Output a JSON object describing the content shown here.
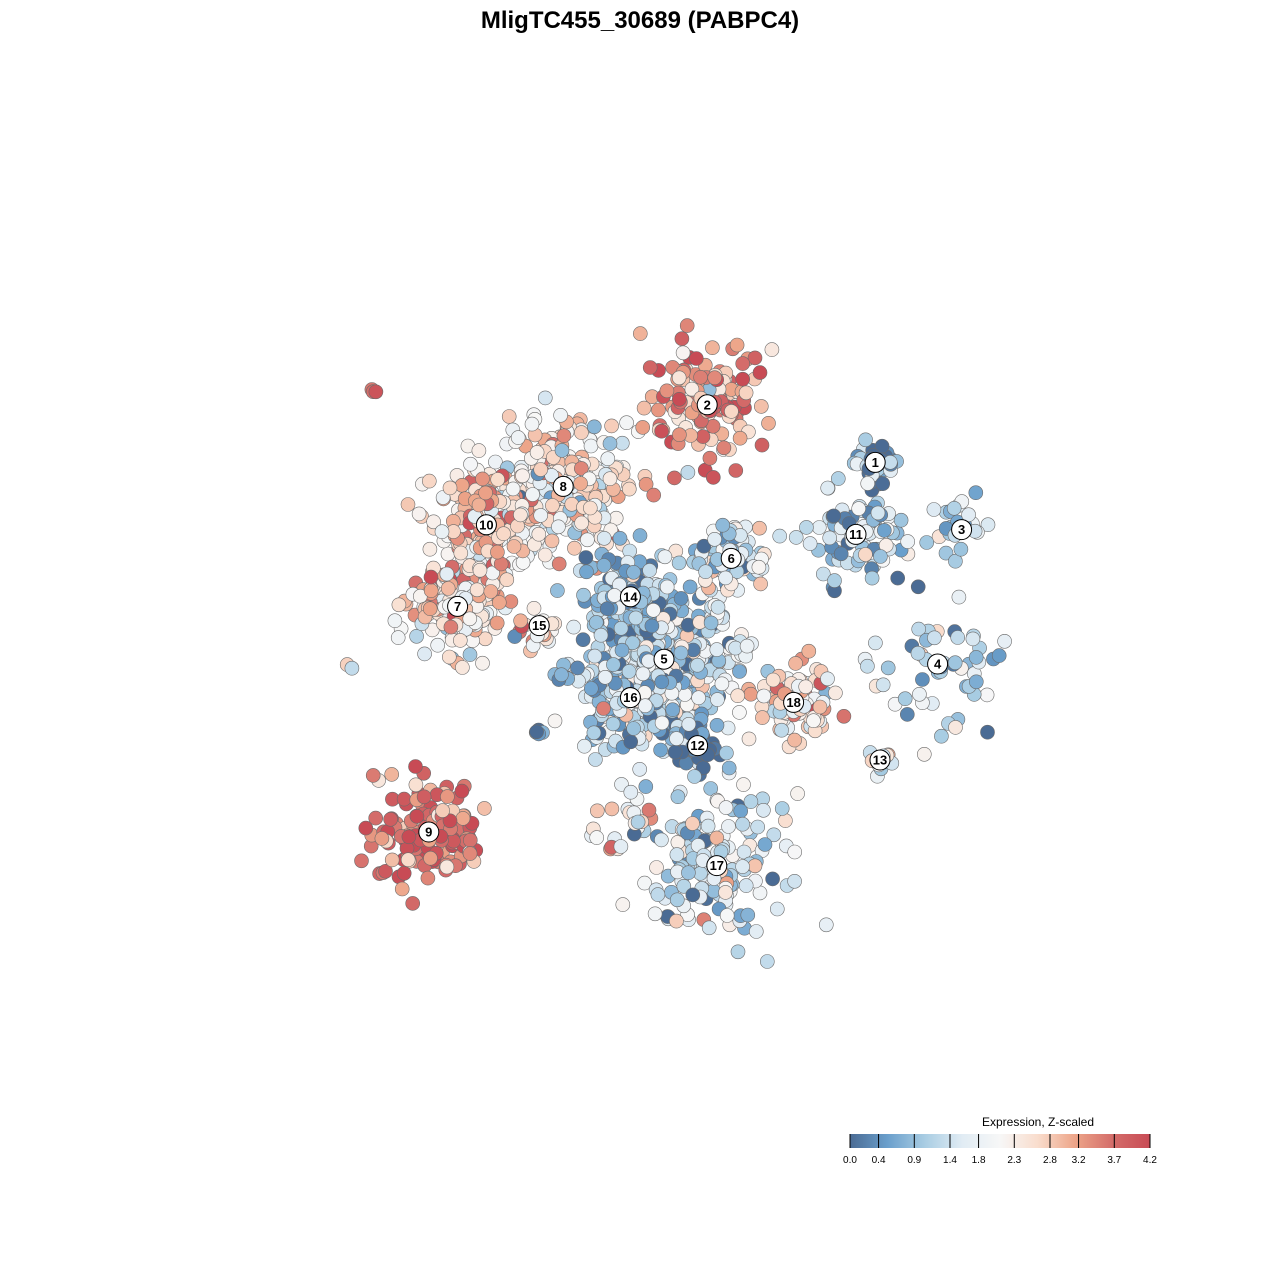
{
  "chart_data": {
    "type": "scatter",
    "title": "MligTC455_30689 (PABPC4)",
    "xlabel": "",
    "ylabel": "",
    "grid": false,
    "legend": {
      "title": "Expression, Z-scaled",
      "placement": "bottom-right",
      "ticks": [
        "0.0",
        "0.4",
        "0.9",
        "1.4",
        "1.8",
        "2.3",
        "2.8",
        "3.2",
        "3.7",
        "4.2"
      ],
      "tick_values": [
        0.0,
        0.4,
        0.9,
        1.4,
        1.8,
        2.3,
        2.8,
        3.2,
        3.7,
        4.2
      ],
      "range": [
        0.0,
        4.2
      ],
      "colors": [
        "#4a6b94",
        "#6a9fcc",
        "#a9cde3",
        "#e1ecf4",
        "#f7f7f7",
        "#f9ddcd",
        "#eda589",
        "#d46d6a",
        "#c84b55"
      ]
    },
    "clusters": [
      {
        "id": "1",
        "x": 0.49,
        "y": 0.37,
        "spread": 0.04,
        "n": 35,
        "expr": 0.6
      },
      {
        "id": "2",
        "x": 0.14,
        "y": 0.49,
        "spread": 0.12,
        "n": 130,
        "expr": 3.3
      },
      {
        "id": "3",
        "x": 0.67,
        "y": 0.23,
        "spread": 0.06,
        "n": 25,
        "expr": 1.3
      },
      {
        "id": "4",
        "x": 0.62,
        "y": -0.05,
        "spread": 0.13,
        "n": 55,
        "expr": 1.1
      },
      {
        "id": "5",
        "x": 0.05,
        "y": -0.04,
        "spread": 0.12,
        "n": 380,
        "expr": 1.3
      },
      {
        "id": "6",
        "x": 0.19,
        "y": 0.17,
        "spread": 0.07,
        "n": 95,
        "expr": 1.4
      },
      {
        "id": "7",
        "x": -0.38,
        "y": 0.07,
        "spread": 0.09,
        "n": 165,
        "expr": 2.4
      },
      {
        "id": "8",
        "x": -0.16,
        "y": 0.32,
        "spread": 0.12,
        "n": 260,
        "expr": 2.2
      },
      {
        "id": "9",
        "x": -0.44,
        "y": -0.4,
        "spread": 0.1,
        "n": 160,
        "expr": 3.7
      },
      {
        "id": "10",
        "x": -0.32,
        "y": 0.24,
        "spread": 0.1,
        "n": 170,
        "expr": 2.6
      },
      {
        "id": "11",
        "x": 0.45,
        "y": 0.22,
        "spread": 0.1,
        "n": 80,
        "expr": 1.0
      },
      {
        "id": "12",
        "x": 0.12,
        "y": -0.22,
        "spread": 0.05,
        "n": 60,
        "expr": 0.4
      },
      {
        "id": "13",
        "x": 0.5,
        "y": -0.25,
        "spread": 0.03,
        "n": 12,
        "expr": 1.6
      },
      {
        "id": "14",
        "x": -0.02,
        "y": 0.09,
        "spread": 0.09,
        "n": 120,
        "expr": 0.9
      },
      {
        "id": "15",
        "x": -0.21,
        "y": 0.03,
        "spread": 0.04,
        "n": 20,
        "expr": 2.5
      },
      {
        "id": "16",
        "x": -0.02,
        "y": -0.12,
        "spread": 0.1,
        "n": 160,
        "expr": 1.2
      },
      {
        "id": "17",
        "x": 0.16,
        "y": -0.47,
        "spread": 0.13,
        "n": 150,
        "expr": 1.4
      },
      {
        "id": "18",
        "x": 0.32,
        "y": -0.13,
        "spread": 0.07,
        "n": 110,
        "expr": 2.4
      }
    ],
    "extra_groups": [
      {
        "x": -0.55,
        "y": 0.52,
        "spread": 0.01,
        "n": 3,
        "expr": 2.8
      },
      {
        "x": -0.6,
        "y": -0.05,
        "spread": 0.01,
        "n": 2,
        "expr": 2.0
      },
      {
        "x": -0.15,
        "y": -0.07,
        "spread": 0.03,
        "n": 8,
        "expr": 0.8
      },
      {
        "x": -0.21,
        "y": -0.19,
        "spread": 0.01,
        "n": 5,
        "expr": 0.6
      },
      {
        "x": -0.03,
        "y": -0.34,
        "spread": 0.04,
        "n": 10,
        "expr": 2.6
      },
      {
        "x": -0.06,
        "y": -0.42,
        "spread": 0.03,
        "n": 8,
        "expr": 2.2
      },
      {
        "x": 0.0,
        "y": -0.39,
        "spread": 0.02,
        "n": 6,
        "expr": 1.8
      },
      {
        "x": 0.21,
        "y": -0.02,
        "spread": 0.03,
        "n": 10,
        "expr": 1.5
      },
      {
        "x": 0.15,
        "y": 0.05,
        "spread": 0.03,
        "n": 12,
        "expr": 1.6
      }
    ]
  }
}
